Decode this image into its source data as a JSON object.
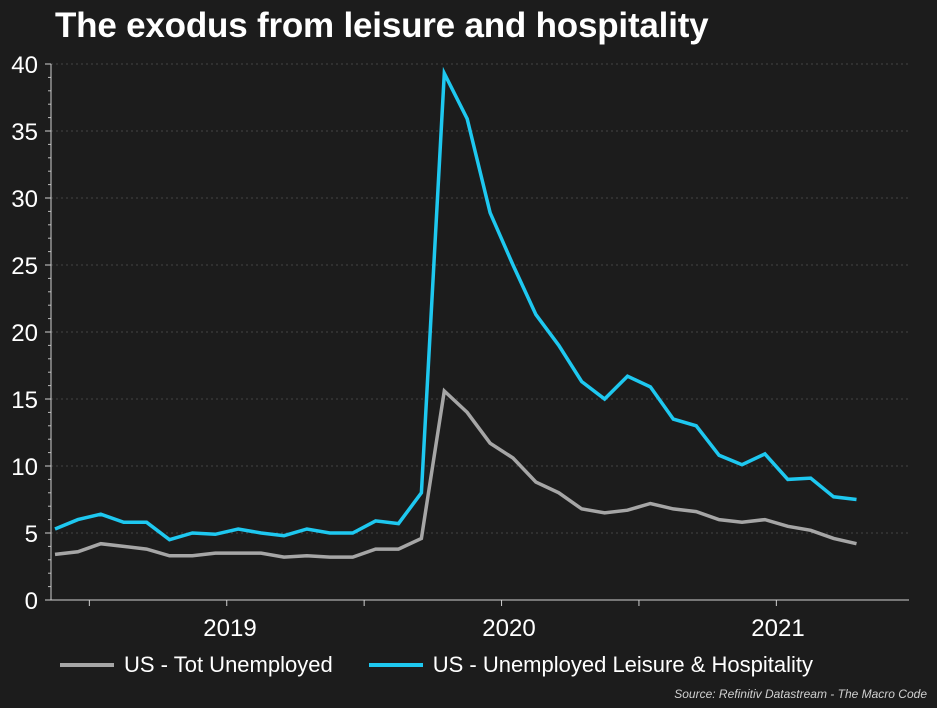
{
  "title": "The exodus from leisure and hospitality",
  "source": "Source: Refinitiv Datastream - The Macro Code",
  "colors": {
    "background": "#1c1c1c",
    "series1": "#a6a6a6",
    "series2": "#1ec8f0"
  },
  "chart_data": {
    "type": "line",
    "title": "The exodus from leisure and hospitality",
    "ylim": [
      0,
      40
    ],
    "yticks": [
      "0",
      "5",
      "10",
      "15",
      "20",
      "25",
      "30",
      "35",
      "40"
    ],
    "xticks": [
      "2019",
      "2020",
      "2021"
    ],
    "x_start": "2018-06",
    "x_end": "2021-06",
    "series": [
      {
        "name": "US - Tot Unemployed",
        "color": "#a6a6a6",
        "values": [
          3.4,
          3.6,
          4.2,
          4.0,
          3.8,
          3.3,
          3.3,
          3.5,
          3.5,
          3.5,
          3.2,
          3.3,
          3.2,
          3.2,
          3.8,
          3.8,
          4.6,
          15.6,
          14.0,
          11.7,
          10.6,
          8.8,
          8.0,
          6.8,
          6.5,
          6.7,
          7.2,
          6.8,
          6.6,
          6.0,
          5.8,
          6.0,
          5.5,
          5.2,
          4.6,
          4.2
        ]
      },
      {
        "name": "US - Unemployed Leisure & Hospitality",
        "color": "#1ec8f0",
        "values": [
          5.3,
          6.0,
          6.4,
          5.8,
          5.8,
          4.5,
          5.0,
          4.9,
          5.3,
          5.0,
          4.8,
          5.3,
          5.0,
          5.0,
          5.9,
          5.7,
          8.0,
          39.3,
          35.9,
          28.9,
          25.0,
          21.3,
          19.0,
          16.3,
          15.0,
          16.7,
          15.9,
          13.5,
          13.0,
          10.8,
          10.1,
          10.9,
          9.0,
          9.1,
          7.7,
          7.5
        ]
      }
    ],
    "legend": [
      "US - Tot Unemployed",
      "US - Unemployed Leisure & Hospitality"
    ]
  }
}
